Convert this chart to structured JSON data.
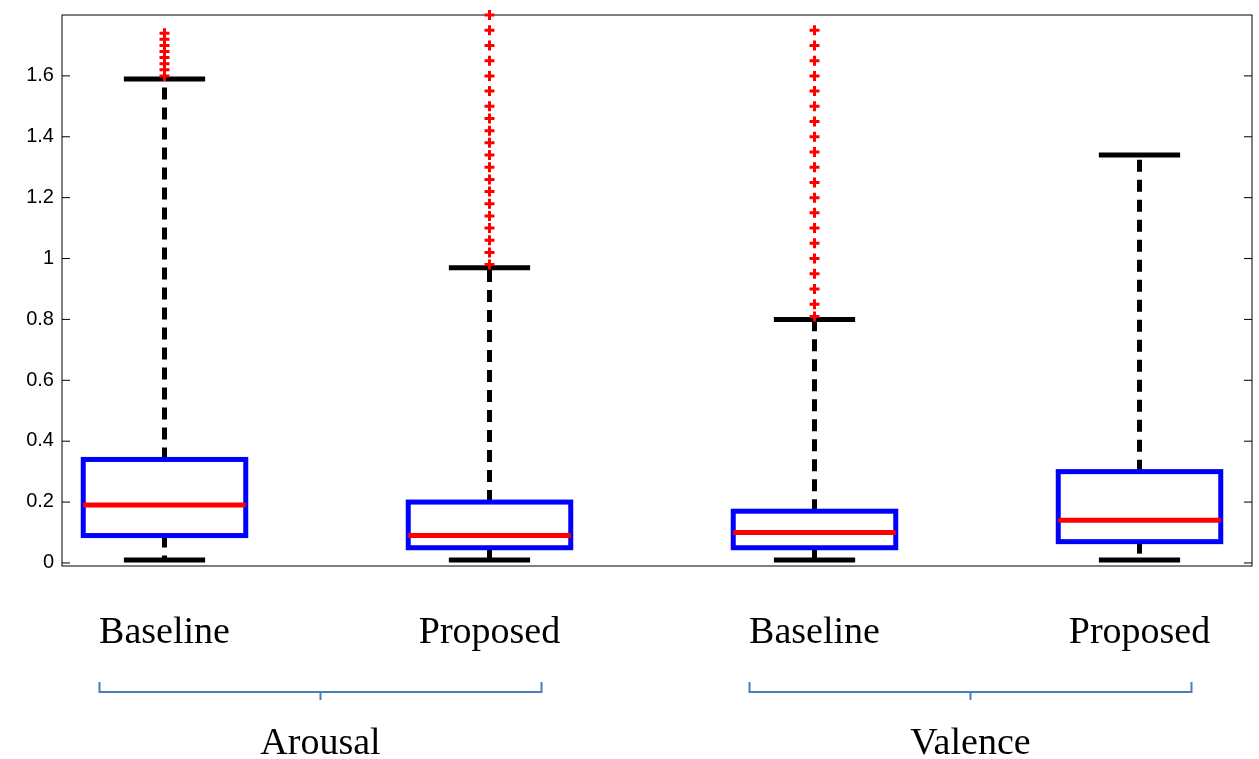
{
  "chart_data": {
    "type": "box",
    "categories": [
      "Baseline",
      "Proposed",
      "Baseline",
      "Proposed"
    ],
    "boxes": [
      {
        "low": 0.01,
        "q1": 0.09,
        "median": 0.19,
        "q3": 0.34,
        "high": 1.59,
        "outliers": [
          1.6,
          1.62,
          1.64,
          1.66,
          1.68,
          1.7,
          1.72,
          1.74
        ]
      },
      {
        "low": 0.01,
        "q1": 0.05,
        "median": 0.09,
        "q3": 0.2,
        "high": 0.97,
        "outliers": [
          0.98,
          1.02,
          1.06,
          1.1,
          1.14,
          1.18,
          1.22,
          1.26,
          1.3,
          1.34,
          1.38,
          1.42,
          1.46,
          1.5,
          1.55,
          1.6,
          1.65,
          1.7,
          1.75,
          1.8
        ]
      },
      {
        "low": 0.01,
        "q1": 0.05,
        "median": 0.1,
        "q3": 0.17,
        "high": 0.8,
        "outliers": [
          0.81,
          0.85,
          0.9,
          0.95,
          1,
          1.05,
          1.1,
          1.15,
          1.2,
          1.25,
          1.3,
          1.35,
          1.4,
          1.45,
          1.5,
          1.55,
          1.6,
          1.65,
          1.7,
          1.75
        ]
      },
      {
        "low": 0.01,
        "q1": 0.07,
        "median": 0.14,
        "q3": 0.3,
        "high": 1.34
      }
    ],
    "color": "#0000ff",
    "ylim": [
      -0.01,
      1.8
    ],
    "yticks": [
      0,
      0.2,
      0.4,
      0.6,
      0.8,
      1,
      1.2,
      1.4,
      1.6
    ],
    "annotations": [
      "Arousal",
      "Valence"
    ]
  }
}
